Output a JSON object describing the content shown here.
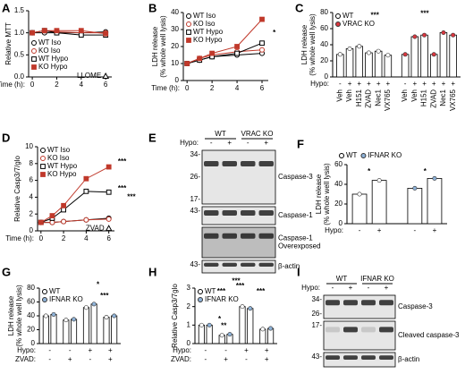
{
  "chart_data": [
    {
      "type": "line",
      "panel": "A",
      "ylabel": "Relative MTT",
      "xlabel": "Time (h):",
      "x": [
        0,
        1,
        2,
        4,
        6
      ],
      "xlim": [
        -0.3,
        6.5
      ],
      "xticks": [
        0,
        2,
        4,
        6
      ],
      "ylim": [
        0,
        1.5
      ],
      "yticks": [
        {
          "value": 0,
          "label": "0.0"
        },
        {
          "value": 0.5,
          "label": "0.5"
        },
        {
          "value": 1,
          "label": "1.0"
        },
        {
          "value": 1.5,
          "label": "1.5"
        }
      ],
      "legend": "lower left",
      "series": [
        {
          "name": "WT Iso",
          "color": "#000000",
          "marker": "circle",
          "filled": false,
          "values": [
            1,
            1,
            1,
            1,
            1.02
          ]
        },
        {
          "name": "KO Iso",
          "color": "#c0392b",
          "marker": "circle",
          "filled": false,
          "values": [
            1,
            1.05,
            1.02,
            1,
            1
          ]
        },
        {
          "name": "WT Hypo",
          "color": "#000000",
          "marker": "square",
          "filled": false,
          "values": [
            1,
            1.05,
            1,
            0.95,
            0.95
          ]
        },
        {
          "name": "KO Hypo",
          "color": "#c0392b",
          "marker": "square",
          "filled": true,
          "values": [
            1,
            1.05,
            1.05,
            1.05,
            0.98
          ]
        }
      ],
      "points": [
        {
          "label": "LLOME",
          "x": 6,
          "value": 0.02
        }
      ],
      "annotations": []
    },
    {
      "type": "line",
      "panel": "B",
      "ylabel": [
        "LDH release",
        "(% whole well lysis)"
      ],
      "xlabel": "Time (h):",
      "x": [
        0,
        1,
        2,
        4,
        6
      ],
      "xlim": [
        -0.3,
        6.5
      ],
      "xticks": [
        0,
        2,
        4,
        6
      ],
      "ylim": [
        0,
        40
      ],
      "yticks": [
        0,
        10,
        20,
        30,
        40
      ],
      "legend": "upper left",
      "series": [
        {
          "name": "WT Iso",
          "color": "#000000",
          "marker": "circle",
          "filled": false,
          "values": [
            10,
            12,
            14,
            15,
            16
          ]
        },
        {
          "name": "KO Iso",
          "color": "#c0392b",
          "marker": "circle",
          "filled": false,
          "values": [
            10,
            13,
            15,
            17,
            18
          ]
        },
        {
          "name": "WT Hypo",
          "color": "#000000",
          "marker": "square",
          "filled": false,
          "values": [
            10,
            12,
            14,
            16,
            22
          ]
        },
        {
          "name": "KO Hypo",
          "color": "#c0392b",
          "marker": "square",
          "filled": true,
          "values": [
            10,
            13,
            16,
            20,
            36
          ]
        }
      ],
      "points": [],
      "annotations": [
        "*"
      ]
    },
    {
      "type": "bar",
      "panel": "C",
      "ylabel": [
        "LDH release",
        "(% whole well lysis)"
      ],
      "ylim": [
        0,
        80
      ],
      "yticks": [
        0,
        20,
        40,
        60,
        80
      ],
      "legend": "upper left",
      "rows": [
        {
          "label": "Hypo:",
          "values": [
            "-",
            "+",
            "+",
            "+",
            "+",
            "+"
          ]
        },
        {
          "values": [
            "Veh",
            "Veh",
            "H151",
            "ZVAD",
            "Nec1",
            "VX765"
          ]
        }
      ],
      "series": [
        {
          "name": "WT",
          "color": "#ffffff",
          "values": [
            28,
            35,
            38,
            30,
            32,
            27
          ]
        },
        {
          "name": "VRAC KO",
          "color": "#d9373f",
          "values": [
            28,
            50,
            52,
            28,
            55,
            52
          ]
        }
      ],
      "annotations": [
        "***",
        "***"
      ]
    },
    {
      "type": "line",
      "panel": "D",
      "ylabel": "Relative Casp3/7/glo",
      "xlabel": "Time (h):",
      "x": [
        0,
        1,
        2,
        4,
        6
      ],
      "xlim": [
        -0.3,
        6.5
      ],
      "xticks": [
        0,
        2,
        4,
        6
      ],
      "ylim": [
        0,
        10
      ],
      "yticks": [
        0,
        2,
        4,
        6,
        8,
        10
      ],
      "legend": "upper left",
      "series": [
        {
          "name": "WT Iso",
          "color": "#000000",
          "marker": "circle",
          "filled": false,
          "values": [
            1,
            1,
            1.1,
            1.3,
            1.5
          ]
        },
        {
          "name": "KO Iso",
          "color": "#c0392b",
          "marker": "circle",
          "filled": false,
          "values": [
            1,
            1,
            1.1,
            1.3,
            1.4
          ]
        },
        {
          "name": "WT Hypo",
          "color": "#000000",
          "marker": "square",
          "filled": false,
          "values": [
            1,
            1.5,
            2.5,
            4.7,
            4.6
          ]
        },
        {
          "name": "KO Hypo",
          "color": "#c0392b",
          "marker": "square",
          "filled": true,
          "values": [
            1,
            1.8,
            3,
            6.2,
            7.6
          ]
        }
      ],
      "points": [
        {
          "label": "ZVAD",
          "x": 6,
          "value": 0.3
        }
      ],
      "annotations": [
        "***",
        "***",
        "***"
      ]
    },
    {
      "type": "bar",
      "panel": "F",
      "ylabel": [
        "LDH release",
        "(% whole well lysis)"
      ],
      "ylim": [
        0,
        60
      ],
      "yticks": [
        0,
        20,
        40,
        60
      ],
      "legend": "top",
      "rows": [
        {
          "label": "Hypo:",
          "values": [
            "-",
            "+"
          ]
        }
      ],
      "series": [
        {
          "name": "WT",
          "color": "#ffffff",
          "values": [
            30,
            44
          ]
        },
        {
          "name": "IFNAR KO",
          "color": "#8fb3d9",
          "values": [
            36,
            46
          ]
        }
      ],
      "annotations": [
        "*",
        "*"
      ]
    },
    {
      "type": "bar",
      "panel": "G",
      "ylabel": [
        "LDH release",
        "(% whole well lysis)"
      ],
      "ylim": [
        0,
        80
      ],
      "yticks": [
        0,
        20,
        40,
        60,
        80
      ],
      "legend": "upper left",
      "rows": [
        {
          "label": "Hypo:",
          "values": [
            "-",
            "-",
            "+",
            "+"
          ]
        },
        {
          "label": "ZVAD:",
          "values": [
            "-",
            "+",
            "-",
            "+"
          ]
        }
      ],
      "series": [
        {
          "name": "WT",
          "color": "#ffffff",
          "values": [
            40,
            34,
            52,
            38
          ]
        },
        {
          "name": "IFNAR KO",
          "color": "#8fb3d9",
          "values": [
            42,
            35,
            57,
            40
          ]
        }
      ],
      "annotations": [
        "*",
        "***"
      ]
    },
    {
      "type": "bar",
      "panel": "H",
      "ylabel": "Relative Casp3/7glo",
      "ylim": [
        0,
        3
      ],
      "yticks": [
        0,
        1,
        2,
        3
      ],
      "legend": "upper left",
      "rows": [
        {
          "label": "Hypo:",
          "values": [
            "-",
            "-",
            "+",
            "+"
          ]
        },
        {
          "label": "ZVAD:",
          "values": [
            "-",
            "+",
            "-",
            "+"
          ]
        }
      ],
      "series": [
        {
          "name": "WT",
          "color": "#ffffff",
          "values": [
            1.0,
            0.45,
            2.0,
            0.78
          ]
        },
        {
          "name": "IFNAR KO",
          "color": "#8fb3d9",
          "values": [
            1.0,
            0.5,
            1.9,
            0.82
          ]
        }
      ],
      "annotations": [
        "***",
        "***",
        "***",
        "***",
        "*",
        "**"
      ]
    }
  ],
  "blots": [
    {
      "panel": "E",
      "row_label": "Hypo:",
      "lanes": [
        "-",
        "+",
        "-",
        "+"
      ],
      "groups": [
        "WT",
        "VRAC KO"
      ],
      "bands": [
        {
          "name": [
            "Caspase-3"
          ],
          "markers": [
            "34-",
            "26-",
            "17-"
          ]
        },
        {
          "name": [
            "Caspase-1"
          ],
          "markers": [
            "43-"
          ]
        },
        {
          "name": [
            "Caspase-1",
            "Overexposed"
          ],
          "markers": []
        },
        {
          "name": [
            "β-actin"
          ],
          "markers": [
            "43-"
          ]
        }
      ]
    },
    {
      "panel": "I",
      "row_label": "Hypo:",
      "lanes": [
        "-",
        "+",
        "-",
        "+"
      ],
      "groups": [
        "WT",
        "IFNAR KO"
      ],
      "bands": [
        {
          "name": [
            "Caspase-3"
          ],
          "markers": [
            "34-",
            "26-"
          ]
        },
        {
          "name": [
            "Cleaved caspase-3"
          ],
          "markers": [
            "17-"
          ]
        },
        {
          "name": [
            "β-actin"
          ],
          "markers": [
            "43-"
          ]
        }
      ]
    }
  ]
}
